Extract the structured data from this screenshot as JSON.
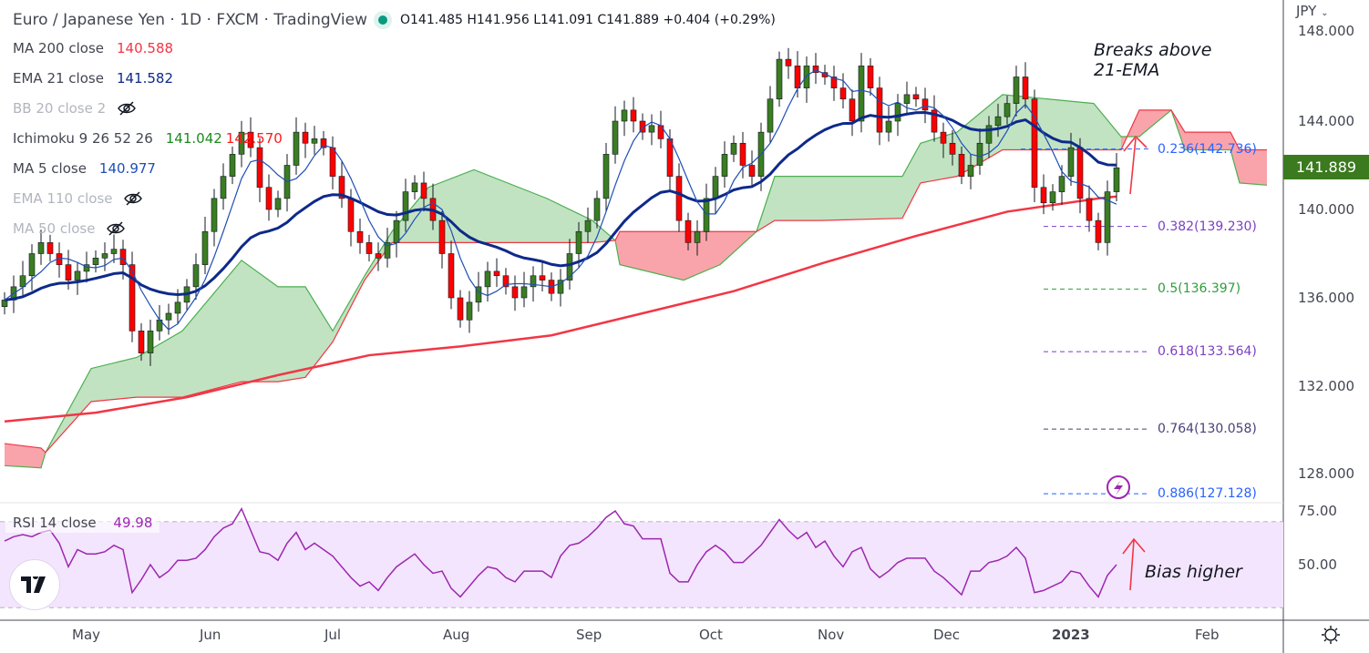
{
  "header": {
    "title": "Euro / Japanese Yen · 1D · FXCM · TradingView",
    "ohlc": "O141.485 H141.956 L141.091 C141.889 +0.404 (+0.29%)"
  },
  "indicators": [
    {
      "label": "MA 200 close",
      "value": "140.588",
      "color": "#f23645",
      "hidden": false
    },
    {
      "label": "EMA 21 close",
      "value": "141.582",
      "color": "#0d2a8a",
      "hidden": false
    },
    {
      "label": "BB 20 close 2",
      "value": "",
      "hidden": true
    },
    {
      "label": "Ichimoku 9 26 52 26",
      "value": "141.042",
      "value2": "142.570",
      "color": "#1b8a1b",
      "color2": "#ff1a1a",
      "hidden": false
    },
    {
      "label": "MA 5 close",
      "value": "140.977",
      "color": "#1f4fb5",
      "hidden": false
    },
    {
      "label": "EMA 110 close",
      "value": "",
      "hidden": true
    },
    {
      "label": "MA 50 close",
      "value": "",
      "hidden": true
    }
  ],
  "price_axis": {
    "currency": "JPY",
    "ticks": [
      "148.000",
      "144.000",
      "140.000",
      "136.000",
      "132.000",
      "128.000"
    ],
    "last_price": "141.889"
  },
  "rsi": {
    "label": "RSI 14 close",
    "value": "49.98",
    "ticks": [
      "75.00",
      "50.00"
    ],
    "upper_band": 70,
    "lower_band": 30
  },
  "time_axis": [
    "May",
    "Jun",
    "Jul",
    "Aug",
    "Sep",
    "Oct",
    "Nov",
    "Dec",
    "2023",
    "Feb"
  ],
  "annotations": {
    "breaks": "Breaks above\n21-EMA",
    "bias": "Bias higher"
  },
  "fib_levels": [
    {
      "ratio": 0.236,
      "price": 142.736,
      "label": "0.236(142.736)",
      "color": "#2962ff"
    },
    {
      "ratio": 0.382,
      "price": 139.23,
      "label": "0.382(139.230)",
      "color": "#7b3fc4"
    },
    {
      "ratio": 0.5,
      "price": 136.397,
      "label": "0.5(136.397)",
      "color": "#2e9e3a"
    },
    {
      "ratio": 0.618,
      "price": 133.564,
      "label": "0.618(133.564)",
      "color": "#7b3fc4"
    },
    {
      "ratio": 0.764,
      "price": 130.058,
      "label": "0.764(130.058)",
      "color": "#4a3f7a"
    },
    {
      "ratio": 0.886,
      "price": 127.128,
      "label": "0.886(127.128)",
      "color": "#2962ff"
    }
  ],
  "colors": {
    "up": "#3a7d22",
    "down": "#ff0000",
    "ma200": "#f23645",
    "ema21": "#0d2a8a",
    "ma5": "#1f4fb5",
    "cloud_up": "#4caf50",
    "cloud_down": "#f23645",
    "rsi": "#9c27b0",
    "rsi_bg": "#f3e5fd"
  },
  "chart_data": {
    "type": "candlestick",
    "title": "Euro / Japanese Yen · 1D · FXCM",
    "x_ticks": [
      "May",
      "Jun",
      "Jul",
      "Aug",
      "Sep",
      "Oct",
      "Nov",
      "Dec",
      "2023",
      "Feb"
    ],
    "ylim": [
      126.5,
      148.5
    ],
    "closes": [
      135.9,
      136.5,
      137,
      138,
      138.5,
      138,
      137.5,
      136.8,
      137.2,
      137.5,
      137.8,
      138,
      138.2,
      137.5,
      134.5,
      133.5,
      134.5,
      135,
      135.3,
      135.8,
      136.5,
      137.5,
      139,
      140.5,
      141.5,
      142.5,
      143.5,
      142.8,
      141,
      140,
      140.5,
      142,
      143.5,
      143,
      143.2,
      142.8,
      141.5,
      140.5,
      139,
      138.5,
      138,
      137.8,
      138.5,
      139.5,
      140.8,
      141.2,
      140.5,
      139.5,
      138,
      136,
      135,
      135.8,
      136.5,
      137.2,
      137,
      136.5,
      136,
      136.5,
      137,
      136.8,
      136.2,
      136.8,
      138,
      139,
      139.5,
      140.5,
      142.5,
      144,
      144.5,
      144,
      143.5,
      143.8,
      143.2,
      141.5,
      139.5,
      138.5,
      139,
      140.5,
      141.5,
      142.5,
      143,
      142,
      141.5,
      143.5,
      145,
      146.8,
      146.5,
      145.5,
      146.5,
      146.2,
      146,
      145.5,
      145,
      144,
      146.5,
      145.5,
      143.5,
      144,
      144.8,
      145.2,
      145,
      144.5,
      143.5,
      143,
      142.5,
      141.5,
      142,
      143,
      143.8,
      144.2,
      144.8,
      146,
      145,
      141,
      140.3,
      140.8,
      141.5,
      142.8,
      140.5,
      139.5,
      138.5,
      140.8,
      141.889
    ],
    "ma200_every_10": [
      130.4,
      130.8,
      131.5,
      132.5,
      133.4,
      133.8,
      134.3,
      135.3,
      136.3,
      137.6,
      138.8,
      139.9,
      140.5,
      140.588
    ],
    "ichimoku_cloud": [
      [
        0,
        128.4,
        129.4
      ],
      [
        4,
        128.3,
        129.2
      ],
      [
        4.5,
        129,
        129
      ],
      [
        9.5,
        132.8,
        131.3
      ],
      [
        14.5,
        133.3,
        131.5
      ],
      [
        19.5,
        134.5,
        131.5
      ],
      [
        26,
        137.7,
        132.2
      ],
      [
        30,
        136.5,
        132.2
      ],
      [
        33,
        136.5,
        132.4
      ],
      [
        36,
        134.5,
        134
      ],
      [
        39.5,
        137,
        136.8
      ],
      [
        42.5,
        139,
        138.5
      ],
      [
        46.5,
        141,
        138.5
      ],
      [
        51.5,
        141.8,
        138.5
      ],
      [
        59.5,
        140.5,
        138.5
      ],
      [
        64.5,
        139.5,
        138.5
      ],
      [
        67,
        138.6,
        138.6
      ],
      [
        67.5,
        137.5,
        139
      ],
      [
        74.5,
        136.8,
        139
      ],
      [
        78.5,
        137.5,
        139
      ],
      [
        82.5,
        139,
        139
      ],
      [
        84.5,
        141.5,
        139.5
      ],
      [
        89.5,
        141.5,
        139.5
      ],
      [
        98.5,
        141.5,
        139.6
      ],
      [
        100.5,
        143,
        141.2
      ],
      [
        104.5,
        143.5,
        141.5
      ],
      [
        109.5,
        145.2,
        142.7
      ],
      [
        114.5,
        145,
        142.7
      ],
      [
        119.5,
        144.8,
        142.7
      ],
      [
        122.5,
        143.3,
        142.7
      ],
      [
        124.5,
        143.3,
        144.5
      ],
      [
        128,
        144.5,
        144.5
      ],
      [
        129.5,
        142.7,
        143.5
      ],
      [
        134.5,
        142.7,
        143.5
      ],
      [
        135.5,
        141.2,
        142.7
      ],
      [
        138.5,
        141.1,
        142.7
      ]
    ],
    "rsi_values": [
      61,
      63,
      64,
      63,
      65,
      66,
      60,
      49,
      57,
      55,
      55,
      56,
      59,
      57,
      37,
      43,
      50,
      44,
      47,
      52,
      52,
      53,
      57,
      63,
      67,
      69,
      76,
      66,
      56,
      55,
      52,
      60,
      65,
      57,
      60,
      57,
      54,
      49,
      44,
      40,
      42,
      38,
      44,
      49,
      52,
      55,
      50,
      46,
      47,
      39,
      35,
      40,
      45,
      49,
      48,
      44,
      42,
      47,
      47,
      47,
      44,
      54,
      59,
      60,
      63,
      67,
      72,
      75,
      69,
      68,
      62,
      62,
      62,
      46,
      42,
      42,
      50,
      56,
      59,
      56,
      51,
      51,
      55,
      59,
      65,
      71,
      66,
      62,
      65,
      58,
      61,
      54,
      49,
      56,
      58,
      48,
      44,
      47,
      51,
      53,
      53,
      53,
      47,
      44,
      40,
      36,
      47,
      47,
      51,
      52,
      54,
      58,
      53,
      37,
      38,
      40,
      42,
      47,
      46,
      40,
      35,
      45,
      49.98
    ],
    "rsi_ylim": [
      25,
      80
    ]
  }
}
